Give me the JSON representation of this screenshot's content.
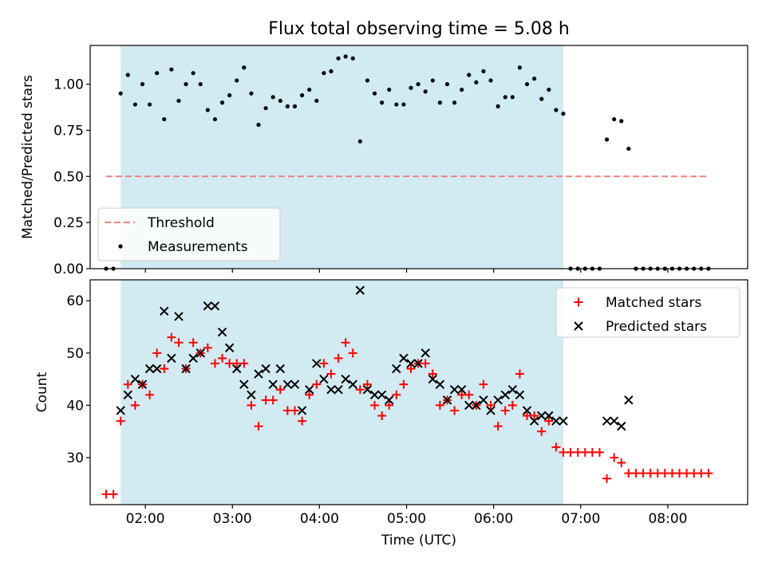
{
  "figure": {
    "title": "Flux total observing time = 5.08 h"
  },
  "chart_data": [
    {
      "type": "scatter",
      "panel": "top",
      "title": "Flux total observing time = 5.08 h",
      "xlabel": "",
      "ylabel": "Matched/Predicted stars",
      "x_is_time_utc_hours": true,
      "xlim": [
        "01:22",
        "08:55"
      ],
      "ylim": [
        0,
        1.21
      ],
      "yticks": [
        0.0,
        0.25,
        0.5,
        0.75,
        1.0
      ],
      "ytick_labels": [
        "0.00",
        "0.25",
        "0.50",
        "0.75",
        "1.00"
      ],
      "grid": false,
      "legend_position": "lower-left",
      "observing_window": {
        "start": "01:43",
        "end": "06:48",
        "color": "#add8e6"
      },
      "threshold": {
        "name": "Threshold",
        "value": 0.5,
        "x_start": "01:33",
        "x_end": "08:28",
        "color": "#f08080",
        "style": "dashed"
      },
      "series": [
        {
          "name": "Measurements",
          "color": "#000000",
          "marker": "dot",
          "points": [
            [
              "01:33",
              0.0
            ],
            [
              "01:38",
              0.0
            ],
            [
              "01:43",
              0.95
            ],
            [
              "01:48",
              1.05
            ],
            [
              "01:53",
              0.89
            ],
            [
              "01:58",
              1.0
            ],
            [
              "02:03",
              0.89
            ],
            [
              "02:08",
              1.06
            ],
            [
              "02:13",
              0.81
            ],
            [
              "02:18",
              1.08
            ],
            [
              "02:23",
              0.91
            ],
            [
              "02:28",
              1.0
            ],
            [
              "02:33",
              1.06
            ],
            [
              "02:38",
              1.0
            ],
            [
              "02:43",
              0.86
            ],
            [
              "02:48",
              0.81
            ],
            [
              "02:53",
              0.9
            ],
            [
              "02:58",
              0.94
            ],
            [
              "03:03",
              1.02
            ],
            [
              "03:08",
              1.09
            ],
            [
              "03:13",
              0.95
            ],
            [
              "03:18",
              0.78
            ],
            [
              "03:23",
              0.87
            ],
            [
              "03:28",
              0.93
            ],
            [
              "03:33",
              0.91
            ],
            [
              "03:38",
              0.88
            ],
            [
              "03:43",
              0.88
            ],
            [
              "03:48",
              0.94
            ],
            [
              "03:53",
              0.97
            ],
            [
              "03:58",
              0.91
            ],
            [
              "04:03",
              1.06
            ],
            [
              "04:08",
              1.07
            ],
            [
              "04:13",
              1.14
            ],
            [
              "04:18",
              1.15
            ],
            [
              "04:23",
              1.14
            ],
            [
              "04:28",
              0.69
            ],
            [
              "04:33",
              1.02
            ],
            [
              "04:38",
              0.95
            ],
            [
              "04:43",
              0.9
            ],
            [
              "04:48",
              0.97
            ],
            [
              "04:53",
              0.89
            ],
            [
              "04:58",
              0.89
            ],
            [
              "05:03",
              0.98
            ],
            [
              "05:08",
              1.0
            ],
            [
              "05:13",
              0.96
            ],
            [
              "05:18",
              1.02
            ],
            [
              "05:23",
              0.9
            ],
            [
              "05:28",
              1.0
            ],
            [
              "05:33",
              0.9
            ],
            [
              "05:38",
              0.97
            ],
            [
              "05:43",
              1.05
            ],
            [
              "05:48",
              1.01
            ],
            [
              "05:53",
              1.07
            ],
            [
              "05:58",
              1.02
            ],
            [
              "06:03",
              0.88
            ],
            [
              "06:08",
              0.93
            ],
            [
              "06:13",
              0.93
            ],
            [
              "06:18",
              1.09
            ],
            [
              "06:23",
              1.0
            ],
            [
              "06:28",
              1.03
            ],
            [
              "06:33",
              0.92
            ],
            [
              "06:38",
              0.97
            ],
            [
              "06:43",
              0.86
            ],
            [
              "06:48",
              0.84
            ],
            [
              "06:53",
              0.0
            ],
            [
              "06:58",
              0.0
            ],
            [
              "07:03",
              0.0
            ],
            [
              "07:08",
              0.0
            ],
            [
              "07:13",
              0.0
            ],
            [
              "07:18",
              0.7
            ],
            [
              "07:23",
              0.81
            ],
            [
              "07:28",
              0.8
            ],
            [
              "07:33",
              0.65
            ],
            [
              "07:38",
              0.0
            ],
            [
              "07:43",
              0.0
            ],
            [
              "07:48",
              0.0
            ],
            [
              "07:53",
              0.0
            ],
            [
              "07:58",
              0.0
            ],
            [
              "08:03",
              0.0
            ],
            [
              "08:08",
              0.0
            ],
            [
              "08:13",
              0.0
            ],
            [
              "08:18",
              0.0
            ],
            [
              "08:23",
              0.0
            ],
            [
              "08:28",
              0.0
            ]
          ]
        }
      ]
    },
    {
      "type": "scatter",
      "panel": "bottom",
      "xlabel": "Time (UTC)",
      "ylabel": "Count",
      "x_is_time_utc_hours": true,
      "xlim": [
        "01:22",
        "08:55"
      ],
      "ylim": [
        21,
        64
      ],
      "xticks": [
        "02:00",
        "03:00",
        "04:00",
        "05:00",
        "06:00",
        "07:00",
        "08:00"
      ],
      "yticks": [
        30,
        40,
        50,
        60
      ],
      "grid": false,
      "legend_position": "upper-right",
      "observing_window": {
        "start": "01:43",
        "end": "06:48",
        "color": "#add8e6"
      },
      "series": [
        {
          "name": "Matched stars",
          "color": "#ff0000",
          "marker": "plus",
          "points": [
            [
              "01:33",
              23
            ],
            [
              "01:38",
              23
            ],
            [
              "01:43",
              37
            ],
            [
              "01:48",
              44
            ],
            [
              "01:53",
              40
            ],
            [
              "01:58",
              44
            ],
            [
              "02:03",
              42
            ],
            [
              "02:08",
              50
            ],
            [
              "02:13",
              47
            ],
            [
              "02:18",
              53
            ],
            [
              "02:23",
              52
            ],
            [
              "02:28",
              47
            ],
            [
              "02:33",
              52
            ],
            [
              "02:38",
              50
            ],
            [
              "02:43",
              51
            ],
            [
              "02:48",
              48
            ],
            [
              "02:53",
              49
            ],
            [
              "02:58",
              48
            ],
            [
              "03:03",
              48
            ],
            [
              "03:08",
              48
            ],
            [
              "03:13",
              40
            ],
            [
              "03:18",
              36
            ],
            [
              "03:23",
              41
            ],
            [
              "03:28",
              41
            ],
            [
              "03:33",
              43
            ],
            [
              "03:38",
              39
            ],
            [
              "03:43",
              39
            ],
            [
              "03:48",
              37
            ],
            [
              "03:53",
              42
            ],
            [
              "03:58",
              44
            ],
            [
              "04:03",
              48
            ],
            [
              "04:08",
              46
            ],
            [
              "04:13",
              49
            ],
            [
              "04:18",
              52
            ],
            [
              "04:23",
              50
            ],
            [
              "04:28",
              43
            ],
            [
              "04:33",
              44
            ],
            [
              "04:38",
              40
            ],
            [
              "04:43",
              38
            ],
            [
              "04:48",
              40
            ],
            [
              "04:53",
              42
            ],
            [
              "04:58",
              44
            ],
            [
              "05:03",
              47
            ],
            [
              "05:08",
              48
            ],
            [
              "05:13",
              48
            ],
            [
              "05:18",
              46
            ],
            [
              "05:23",
              40
            ],
            [
              "05:28",
              41
            ],
            [
              "05:33",
              39
            ],
            [
              "05:38",
              42
            ],
            [
              "05:43",
              42
            ],
            [
              "05:48",
              40
            ],
            [
              "05:53",
              44
            ],
            [
              "05:58",
              40
            ],
            [
              "06:03",
              36
            ],
            [
              "06:08",
              39
            ],
            [
              "06:13",
              40
            ],
            [
              "06:18",
              46
            ],
            [
              "06:23",
              38
            ],
            [
              "06:28",
              38
            ],
            [
              "06:33",
              35
            ],
            [
              "06:38",
              37
            ],
            [
              "06:43",
              32
            ],
            [
              "06:48",
              31
            ],
            [
              "06:53",
              31
            ],
            [
              "06:58",
              31
            ],
            [
              "07:03",
              31
            ],
            [
              "07:08",
              31
            ],
            [
              "07:13",
              31
            ],
            [
              "07:18",
              26
            ],
            [
              "07:23",
              30
            ],
            [
              "07:28",
              29
            ],
            [
              "07:33",
              27
            ],
            [
              "07:38",
              27
            ],
            [
              "07:43",
              27
            ],
            [
              "07:48",
              27
            ],
            [
              "07:53",
              27
            ],
            [
              "07:58",
              27
            ],
            [
              "08:03",
              27
            ],
            [
              "08:08",
              27
            ],
            [
              "08:13",
              27
            ],
            [
              "08:18",
              27
            ],
            [
              "08:23",
              27
            ],
            [
              "08:28",
              27
            ]
          ]
        },
        {
          "name": "Predicted stars",
          "color": "#000000",
          "marker": "x",
          "points": [
            [
              "01:43",
              39
            ],
            [
              "01:48",
              42
            ],
            [
              "01:53",
              45
            ],
            [
              "01:58",
              44
            ],
            [
              "02:03",
              47
            ],
            [
              "02:08",
              47
            ],
            [
              "02:13",
              58
            ],
            [
              "02:18",
              49
            ],
            [
              "02:23",
              57
            ],
            [
              "02:28",
              47
            ],
            [
              "02:33",
              49
            ],
            [
              "02:38",
              50
            ],
            [
              "02:43",
              59
            ],
            [
              "02:48",
              59
            ],
            [
              "02:53",
              54
            ],
            [
              "02:58",
              51
            ],
            [
              "03:03",
              47
            ],
            [
              "03:08",
              44
            ],
            [
              "03:13",
              42
            ],
            [
              "03:18",
              46
            ],
            [
              "03:23",
              47
            ],
            [
              "03:28",
              44
            ],
            [
              "03:33",
              47
            ],
            [
              "03:38",
              44
            ],
            [
              "03:43",
              44
            ],
            [
              "03:48",
              39
            ],
            [
              "03:53",
              43
            ],
            [
              "03:58",
              48
            ],
            [
              "04:03",
              45
            ],
            [
              "04:08",
              43
            ],
            [
              "04:13",
              43
            ],
            [
              "04:18",
              45
            ],
            [
              "04:23",
              44
            ],
            [
              "04:28",
              62
            ],
            [
              "04:33",
              43
            ],
            [
              "04:38",
              42
            ],
            [
              "04:43",
              42
            ],
            [
              "04:48",
              41
            ],
            [
              "04:53",
              47
            ],
            [
              "04:58",
              49
            ],
            [
              "05:03",
              48
            ],
            [
              "05:08",
              48
            ],
            [
              "05:13",
              50
            ],
            [
              "05:18",
              45
            ],
            [
              "05:23",
              44
            ],
            [
              "05:28",
              41
            ],
            [
              "05:33",
              43
            ],
            [
              "05:38",
              43
            ],
            [
              "05:43",
              40
            ],
            [
              "05:48",
              40
            ],
            [
              "05:53",
              41
            ],
            [
              "05:58",
              39
            ],
            [
              "06:03",
              41
            ],
            [
              "06:08",
              42
            ],
            [
              "06:13",
              43
            ],
            [
              "06:18",
              42
            ],
            [
              "06:23",
              39
            ],
            [
              "06:28",
              37
            ],
            [
              "06:33",
              38
            ],
            [
              "06:38",
              38
            ],
            [
              "06:43",
              37
            ],
            [
              "06:48",
              37
            ],
            [
              "07:18",
              37
            ],
            [
              "07:23",
              37
            ],
            [
              "07:28",
              36
            ],
            [
              "07:33",
              41
            ]
          ]
        }
      ]
    }
  ]
}
